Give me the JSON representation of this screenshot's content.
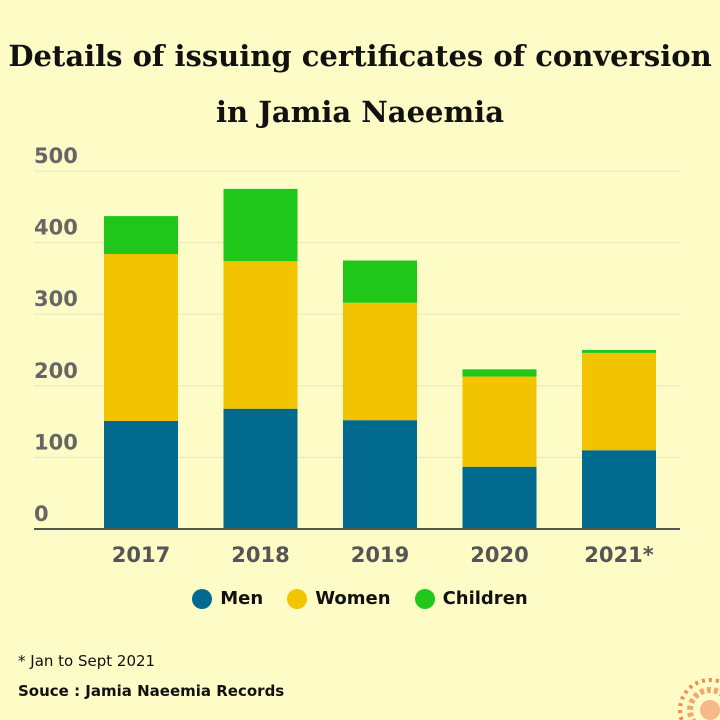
{
  "title_line1": "Details of issuing certificates of conversion",
  "title_line2": "in Jamia Naeemia",
  "footnote": "* Jan to Sept 2021",
  "source": "Souce : Jamia Naeemia Records",
  "chart_data": {
    "type": "bar",
    "stacked": true,
    "title": "Details of issuing certificates of conversion in Jamia Naeemia",
    "xlabel": "",
    "ylabel": "",
    "categories": [
      "2017",
      "2018",
      "2019",
      "2020",
      "2021*"
    ],
    "ylim": [
      0,
      500
    ],
    "yticks": [
      0,
      100,
      200,
      300,
      400,
      500
    ],
    "grid": true,
    "legend_position": "bottom",
    "series": [
      {
        "name": "Men",
        "color": "#02698f",
        "values": [
          151,
          168,
          152,
          87,
          110
        ]
      },
      {
        "name": "Women",
        "color": "#f2c400",
        "values": [
          233,
          206,
          164,
          126,
          136
        ]
      },
      {
        "name": "Children",
        "color": "#1ec71a",
        "values": [
          53,
          101,
          59,
          10,
          4
        ]
      }
    ]
  }
}
